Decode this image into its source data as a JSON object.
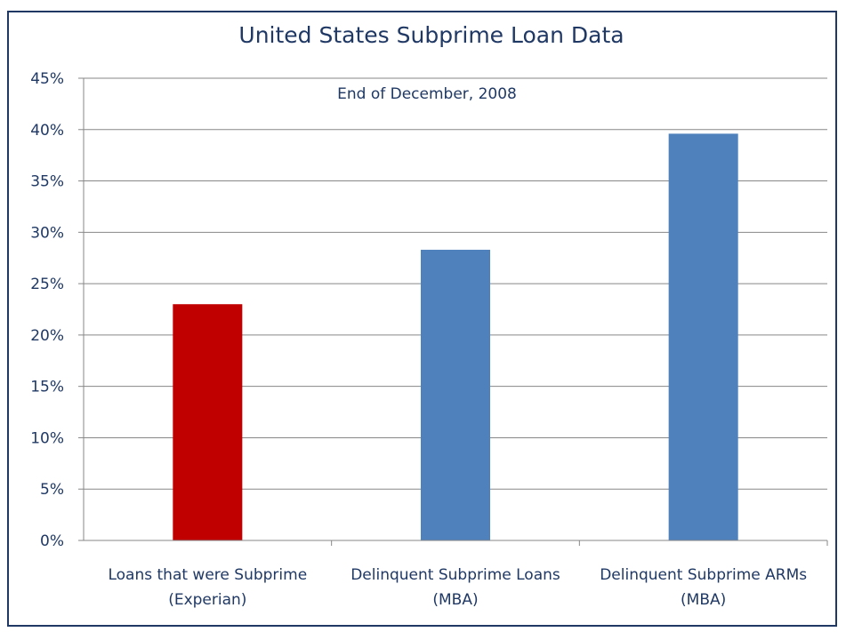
{
  "chart_data": {
    "type": "bar",
    "title": "United States Subprime Loan Data",
    "annotation": "End of December, 2008",
    "categories": [
      [
        "Loans that were Subprime",
        "(Experian)"
      ],
      [
        "Delinquent Subprime Loans",
        "(MBA)"
      ],
      [
        "Delinquent Subprime ARMs",
        "(MBA)"
      ]
    ],
    "values": [
      23.0,
      28.3,
      39.6
    ],
    "bar_colors": [
      "#c00000",
      "#4f81bd",
      "#4f81bd"
    ],
    "ylim": [
      0,
      45
    ],
    "yticks": [
      "0%",
      "5%",
      "10%",
      "15%",
      "20%",
      "25%",
      "30%",
      "35%",
      "40%",
      "45%"
    ],
    "ytick_values": [
      0,
      5,
      10,
      15,
      20,
      25,
      30,
      35,
      40,
      45
    ],
    "grid": true,
    "legend": "none",
    "xlabel": "",
    "ylabel": ""
  }
}
